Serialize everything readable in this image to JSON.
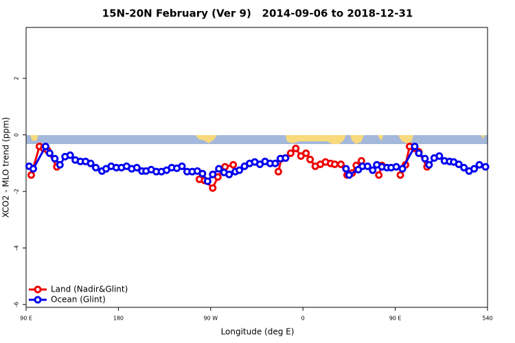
{
  "chart_data": {
    "type": "line",
    "title": "15N-20N February (Ver 9)   2014-09-06 to 2018-12-31",
    "x_label": "Longitude (deg E)",
    "y_label": "XCO2 - MLO trend (ppm)",
    "xlim": [
      90,
      540
    ],
    "xticks": [
      {
        "value": 90,
        "label": "90 E"
      },
      180,
      {
        "value": 270,
        "label": "90 W"
      },
      {
        "value": 360,
        "label": "0"
      },
      {
        "value": 450,
        "label": "90 E"
      },
      540
    ],
    "ylim": [
      -6.1,
      3.8
    ],
    "yticks": [
      -6,
      -4,
      -2,
      0,
      2
    ],
    "legend": "bottom-left",
    "series": [
      {
        "name": "Land (Nadir&Glint)",
        "color": "#ee0000",
        "x": [
          95,
          103,
          107,
          111,
          120,
          null,
          259,
          264,
          272,
          277,
          284,
          292,
          null,
          336,
          339,
          343,
          348,
          353,
          358,
          363,
          367,
          372,
          377,
          382,
          387,
          391,
          397,
          403,
          408,
          412,
          417,
          null,
          434,
          437,
          null,
          455,
          460,
          464,
          469,
          473,
          481
        ],
        "values": [
          -1.42,
          -0.41,
          -0.48,
          -0.55,
          -1.13,
          null,
          -1.57,
          -1.61,
          -1.88,
          -1.49,
          -1.13,
          -1.06,
          null,
          -1.3,
          -0.84,
          -0.82,
          -0.65,
          -0.48,
          -0.75,
          -0.65,
          -0.87,
          -1.11,
          -1.04,
          -0.96,
          -1.01,
          -1.04,
          -1.04,
          -1.42,
          -1.35,
          -1.08,
          -0.92,
          null,
          -1.42,
          -1.08,
          null,
          -1.42,
          -1.06,
          -0.41,
          -0.48,
          -0.6,
          -1.13
        ]
      },
      {
        "name": "Ocean (Glint)",
        "color": "#0000ee",
        "x": [
          93,
          97,
          109,
          113,
          118,
          123,
          128,
          133,
          138,
          143,
          148,
          153,
          158,
          164,
          168,
          173,
          178,
          183,
          188,
          193,
          198,
          203,
          207,
          212,
          217,
          222,
          227,
          232,
          237,
          242,
          247,
          252,
          257,
          262,
          267,
          272,
          278,
          283,
          288,
          294,
          298,
          303,
          308,
          313,
          318,
          323,
          328,
          333,
          338,
          343,
          null,
          402,
          405,
          414,
          418,
          423,
          428,
          432,
          437,
          442,
          446,
          451,
          457,
          469,
          473,
          479,
          483,
          488,
          493,
          498,
          503,
          507,
          512,
          517,
          522,
          527,
          532,
          538
        ],
        "values": [
          -1.11,
          -1.2,
          -0.41,
          -0.65,
          -0.84,
          -1.06,
          -0.77,
          -0.72,
          -0.89,
          -0.94,
          -0.94,
          -1.01,
          -1.16,
          -1.28,
          -1.2,
          -1.11,
          -1.16,
          -1.16,
          -1.11,
          -1.2,
          -1.16,
          -1.28,
          -1.28,
          -1.23,
          -1.3,
          -1.3,
          -1.25,
          -1.16,
          -1.18,
          -1.11,
          -1.3,
          -1.3,
          -1.28,
          -1.37,
          -1.64,
          -1.4,
          -1.2,
          -1.33,
          -1.4,
          -1.3,
          -1.25,
          -1.11,
          -1.01,
          -0.96,
          -1.04,
          -0.94,
          -1.01,
          -1.01,
          -0.84,
          -0.82,
          null,
          -1.2,
          -1.42,
          -1.23,
          -1.11,
          -1.11,
          -1.25,
          -1.06,
          -1.13,
          -1.16,
          -1.16,
          -1.13,
          -1.2,
          -0.41,
          -0.65,
          -0.84,
          -1.06,
          -0.82,
          -0.75,
          -0.92,
          -0.94,
          -0.96,
          -1.04,
          -1.16,
          -1.28,
          -1.2,
          -1.06,
          -1.13
        ]
      }
    ]
  }
}
